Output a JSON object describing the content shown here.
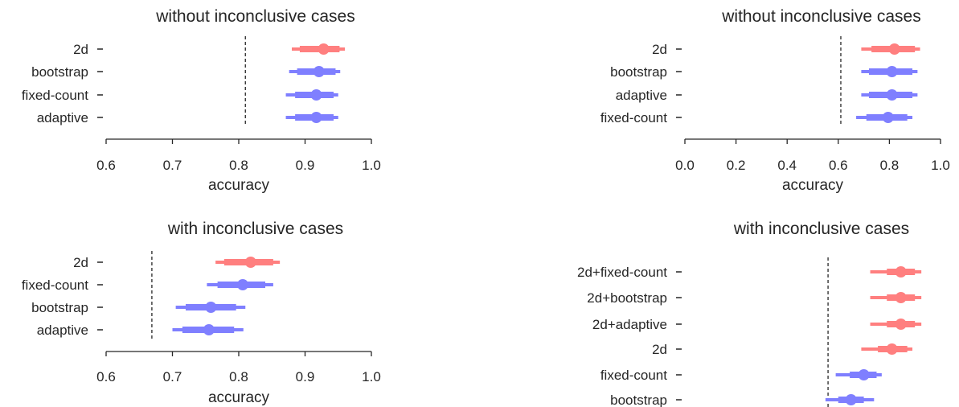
{
  "colors": {
    "red": "#ff7f7f",
    "blue": "#7f7fff",
    "text": "#262626"
  },
  "chart_data": [
    {
      "type": "interval",
      "title": "without inconclusive cases",
      "xlabel": "accuracy",
      "xlim": [
        0.6,
        1.0
      ],
      "xticks": [
        "0.6",
        "0.7",
        "0.8",
        "0.9",
        "1.0"
      ],
      "reference_line": 0.81,
      "rows": [
        {
          "label": "2d",
          "point": 0.928,
          "ci_inner": [
            0.892,
            0.952
          ],
          "ci_outer": [
            0.88,
            0.96
          ],
          "color": "red"
        },
        {
          "label": "bootstrap",
          "point": 0.921,
          "ci_inner": [
            0.888,
            0.946
          ],
          "ci_outer": [
            0.876,
            0.953
          ],
          "color": "blue"
        },
        {
          "label": "fixed-count",
          "point": 0.917,
          "ci_inner": [
            0.885,
            0.943
          ],
          "ci_outer": [
            0.871,
            0.95
          ],
          "color": "blue"
        },
        {
          "label": "adaptive",
          "point": 0.917,
          "ci_inner": [
            0.885,
            0.943
          ],
          "ci_outer": [
            0.871,
            0.95
          ],
          "color": "blue"
        }
      ]
    },
    {
      "type": "interval",
      "title": "without inconclusive cases",
      "xlabel": "accuracy",
      "xlim": [
        0.0,
        1.0
      ],
      "xticks": [
        "0.0",
        "0.2",
        "0.4",
        "0.6",
        "0.8",
        "1.0"
      ],
      "reference_line": 0.61,
      "rows": [
        {
          "label": "2d",
          "point": 0.82,
          "ci_inner": [
            0.73,
            0.9
          ],
          "ci_outer": [
            0.69,
            0.92
          ],
          "color": "red"
        },
        {
          "label": "bootstrap",
          "point": 0.81,
          "ci_inner": [
            0.72,
            0.89
          ],
          "ci_outer": [
            0.69,
            0.91
          ],
          "color": "blue"
        },
        {
          "label": "adaptive",
          "point": 0.81,
          "ci_inner": [
            0.72,
            0.89
          ],
          "ci_outer": [
            0.69,
            0.91
          ],
          "color": "blue"
        },
        {
          "label": "fixed-count",
          "point": 0.795,
          "ci_inner": [
            0.71,
            0.87
          ],
          "ci_outer": [
            0.67,
            0.89
          ],
          "color": "blue"
        }
      ]
    },
    {
      "type": "interval",
      "title": "with inconclusive cases",
      "xlabel": "accuracy",
      "xlim": [
        0.6,
        1.0
      ],
      "xticks": [
        "0.6",
        "0.7",
        "0.8",
        "0.9",
        "1.0"
      ],
      "reference_line": 0.669,
      "rows": [
        {
          "label": "2d",
          "point": 0.818,
          "ci_inner": [
            0.778,
            0.852
          ],
          "ci_outer": [
            0.765,
            0.862
          ],
          "color": "red"
        },
        {
          "label": "fixed-count",
          "point": 0.806,
          "ci_inner": [
            0.768,
            0.84
          ],
          "ci_outer": [
            0.752,
            0.852
          ],
          "color": "blue"
        },
        {
          "label": "bootstrap",
          "point": 0.758,
          "ci_inner": [
            0.72,
            0.796
          ],
          "ci_outer": [
            0.705,
            0.81
          ],
          "color": "blue"
        },
        {
          "label": "adaptive",
          "point": 0.755,
          "ci_inner": [
            0.715,
            0.793
          ],
          "ci_outer": [
            0.7,
            0.807
          ],
          "color": "blue"
        }
      ]
    },
    {
      "type": "interval",
      "title": "with inconclusive cases",
      "rows": [
        {
          "label": "2d+fixed-count",
          "point": 0.845,
          "ci_inner": [
            0.79,
            0.9
          ],
          "ci_outer": [
            0.725,
            0.925
          ],
          "color": "red"
        },
        {
          "label": "2d+bootstrap",
          "point": 0.845,
          "ci_inner": [
            0.79,
            0.9
          ],
          "ci_outer": [
            0.725,
            0.925
          ],
          "color": "red"
        },
        {
          "label": "2d+adaptive",
          "point": 0.845,
          "ci_inner": [
            0.79,
            0.9
          ],
          "ci_outer": [
            0.725,
            0.925
          ],
          "color": "red"
        },
        {
          "label": "2d",
          "point": 0.81,
          "ci_inner": [
            0.755,
            0.87
          ],
          "ci_outer": [
            0.69,
            0.89
          ],
          "color": "red"
        },
        {
          "label": "fixed-count",
          "point": 0.7,
          "ci_inner": [
            0.645,
            0.75
          ],
          "ci_outer": [
            0.59,
            0.77
          ],
          "color": "blue"
        },
        {
          "label": "bootstrap",
          "point": 0.65,
          "ci_inner": [
            0.6,
            0.7
          ],
          "ci_outer": [
            0.55,
            0.74
          ],
          "color": "blue"
        }
      ],
      "reference_line": 0.56
    }
  ]
}
